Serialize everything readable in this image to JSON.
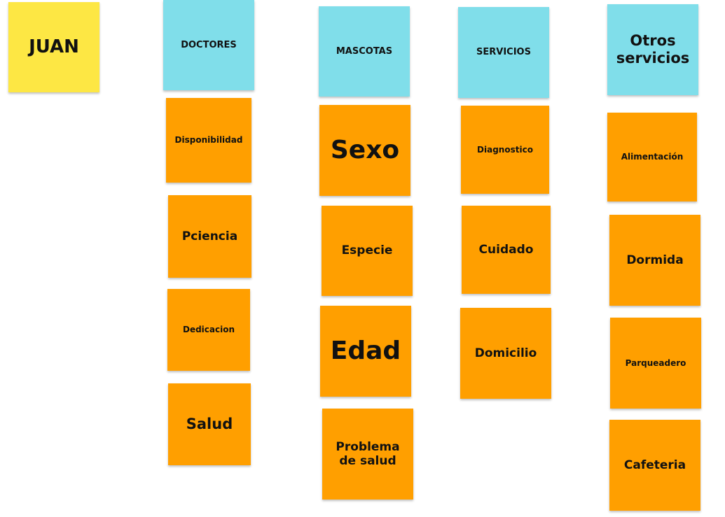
{
  "colors": {
    "person_note": "#fde744",
    "category_note": "#80deea",
    "item_note": "#ff9f00"
  },
  "person": {
    "label": "JUAN"
  },
  "columns": [
    {
      "header": "DOCTORES",
      "items": [
        "Disponibilidad",
        "Pciencia",
        "Dedicacion",
        "Salud"
      ]
    },
    {
      "header": "MASCOTAS",
      "items": [
        "Sexo",
        "Especie",
        "Edad",
        "Problema de salud"
      ]
    },
    {
      "header": "SERVICIOS",
      "items": [
        "Diagnostico",
        "Cuidado",
        "Domicilio"
      ]
    },
    {
      "header": "Otros servicios",
      "items": [
        "Alimentación",
        "Dormida",
        "Parqueadero",
        "Cafeteria"
      ]
    }
  ]
}
